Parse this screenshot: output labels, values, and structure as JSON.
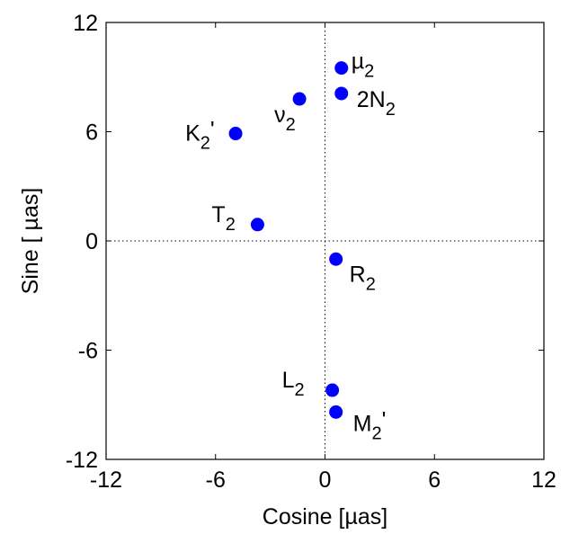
{
  "chart_data": {
    "type": "scatter",
    "title": "",
    "xlabel": "Cosine [µas]",
    "ylabel": "Sine [ µas]",
    "xlim": [
      -12,
      12
    ],
    "ylim": [
      -12,
      12
    ],
    "xticks": [
      -12,
      -6,
      0,
      6,
      12
    ],
    "yticks": [
      -12,
      -6,
      0,
      6,
      12
    ],
    "xtick_labels": [
      "-12",
      "-6",
      "0",
      "6",
      "12"
    ],
    "ytick_labels": [
      "-12",
      "-6",
      "0",
      "6",
      "12"
    ],
    "zero_lines": true,
    "grid": false,
    "legend": "none",
    "marker_color": "#0000ff",
    "points": [
      {
        "base": "µ",
        "sub": "2",
        "suffix": "",
        "x": 0.9,
        "y": 9.5
      },
      {
        "base": "2N",
        "sub": "2",
        "suffix": "",
        "x": 0.9,
        "y": 8.1
      },
      {
        "base": "ν",
        "sub": "2",
        "suffix": "",
        "x": -1.4,
        "y": 7.8
      },
      {
        "base": "K",
        "sub": "2",
        "suffix": "'",
        "x": -4.9,
        "y": 5.9
      },
      {
        "base": "T",
        "sub": "2",
        "suffix": "",
        "x": -3.7,
        "y": 0.9
      },
      {
        "base": "R",
        "sub": "2",
        "suffix": "",
        "x": 0.6,
        "y": -1.0
      },
      {
        "base": "L",
        "sub": "2",
        "suffix": "",
        "x": 0.4,
        "y": -8.2
      },
      {
        "base": "M",
        "sub": "2",
        "suffix": "'",
        "x": 0.6,
        "y": -9.4
      }
    ]
  }
}
